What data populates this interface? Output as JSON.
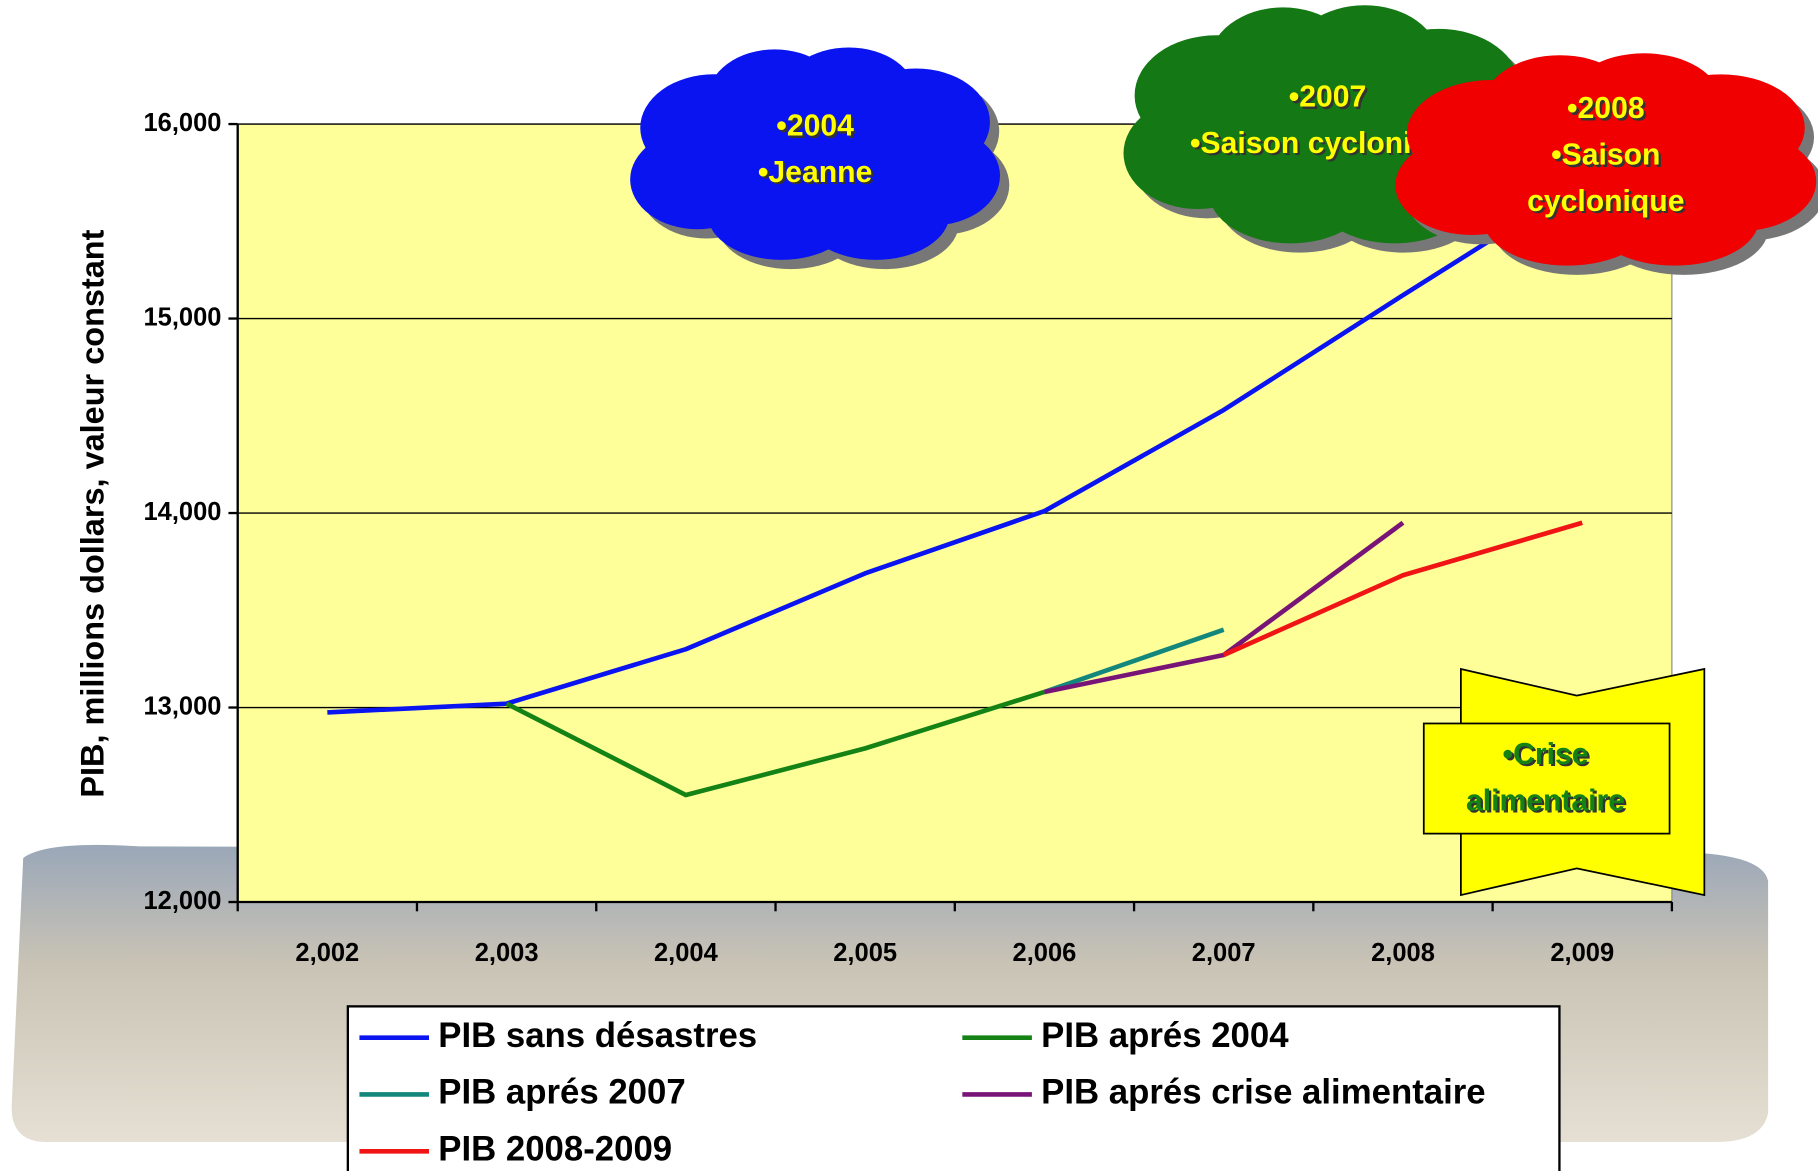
{
  "chart_data": {
    "type": "line",
    "y_label": "PIB, millions dollars, valeur constant",
    "categories": [
      "2,002",
      "2,003",
      "2,004",
      "2,005",
      "2,006",
      "2,007",
      "2,008",
      "2,009"
    ],
    "series": [
      {
        "name": "PIB sans désastres",
        "color": "#0a14f0",
        "values": [
          12975,
          13020,
          13300,
          13690,
          14010,
          14530,
          15120,
          15700
        ]
      },
      {
        "name": "PIB aprés 2004",
        "color": "#148214",
        "values": [
          null,
          13020,
          12550,
          12790,
          13080,
          null,
          null,
          null
        ]
      },
      {
        "name": "PIB aprés 2007",
        "color": "#14877d",
        "values": [
          null,
          null,
          null,
          null,
          13080,
          13400,
          null,
          null
        ]
      },
      {
        "name": "PIB aprés crise alimentaire",
        "color": "#781478",
        "values": [
          null,
          null,
          null,
          null,
          13080,
          13270,
          13950,
          null
        ]
      },
      {
        "name": "PIB 2008-2009",
        "color": "#f01414",
        "values": [
          null,
          null,
          null,
          null,
          null,
          13270,
          13680,
          13950
        ]
      }
    ],
    "ylim": [
      12000,
      16000
    ],
    "yticks": [
      {
        "value": 12000,
        "label": "12,000"
      },
      {
        "value": 13000,
        "label": "13,000"
      },
      {
        "value": 14000,
        "label": "14,000"
      },
      {
        "value": 15000,
        "label": "15,000"
      },
      {
        "value": 16000,
        "label": "16,000"
      }
    ],
    "grid": true,
    "plot_color": "#ffff99",
    "annotations": [
      {
        "shape": "cloud",
        "color": "#0a14f0",
        "lines": [
          "•2004",
          "•Jeanne"
        ]
      },
      {
        "shape": "cloud",
        "color": "#147814",
        "lines": [
          "•2007",
          "•Saison cyclonique"
        ]
      },
      {
        "shape": "cloud",
        "color": "#f00000",
        "lines": [
          "•2008",
          "•Saison",
          "cyclonique"
        ]
      },
      {
        "shape": "banner",
        "color": "#ffff00",
        "lines": [
          "•Crise",
          "alimentaire"
        ]
      }
    ]
  }
}
